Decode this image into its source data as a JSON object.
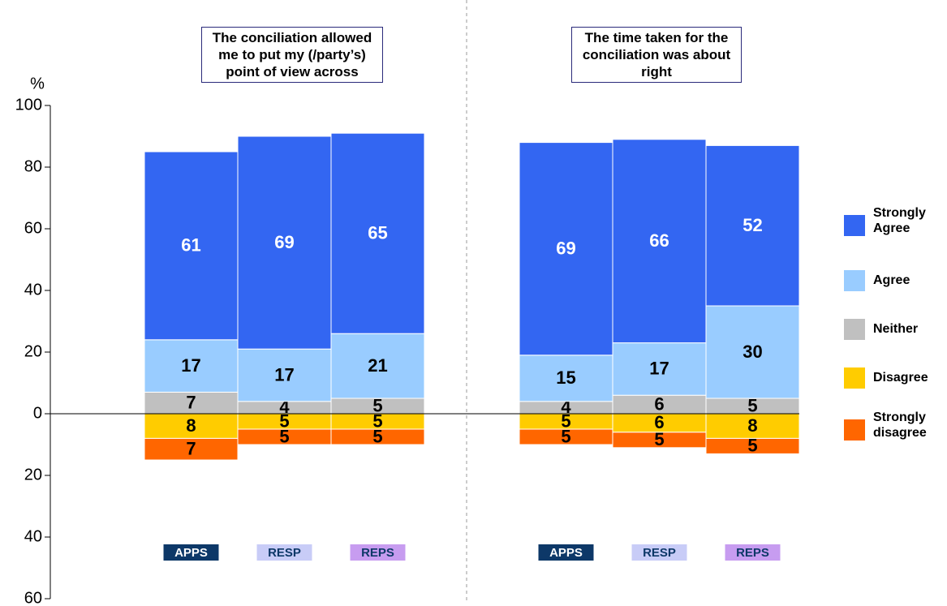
{
  "chart_data": {
    "type": "diverging-stacked-bar",
    "ylabel": "%",
    "ylim": [
      -60,
      100
    ],
    "yticks": [
      100,
      80,
      60,
      40,
      20,
      0,
      {
        "value": -20,
        "label": "20"
      },
      {
        "value": -40,
        "label": "40"
      },
      {
        "value": -60,
        "label": "60"
      }
    ],
    "groups": [
      {
        "title": "The conciliation allowed me to put my (/party’s) point of view across",
        "categories": [
          "APPS",
          "RESP",
          "REPS"
        ]
      },
      {
        "title": "The time taken for the conciliation was about right",
        "categories": [
          "APPS",
          "RESP",
          "REPS"
        ]
      }
    ],
    "category_colors": [
      {
        "fill": "#0d3868",
        "text": "#ffffff"
      },
      {
        "fill": "#c8ccf7",
        "text": "#0d3868"
      },
      {
        "fill": "#c79cf0",
        "text": "#0d3868"
      }
    ],
    "series": [
      {
        "name": "Strongly Agree",
        "color": "#3366f2",
        "label_color": "#ffffff",
        "values": [
          61,
          69,
          65,
          69,
          66,
          52
        ]
      },
      {
        "name": "Agree",
        "color": "#99ccff",
        "label_color": "#000000",
        "values": [
          17,
          17,
          21,
          15,
          17,
          30
        ]
      },
      {
        "name": "Neither",
        "color": "#c0c0c0",
        "label_color": "#000000",
        "values": [
          7,
          4,
          5,
          4,
          6,
          5
        ]
      },
      {
        "name": "Disagree",
        "color": "#ffcc00",
        "label_color": "#000000",
        "values": [
          -8,
          -5,
          -5,
          -5,
          -6,
          -8
        ],
        "value_labels": [
          "8",
          "5",
          "5",
          "5",
          "6",
          "8"
        ]
      },
      {
        "name": "Strongly disagree",
        "color": "#ff6600",
        "label_color": "#000000",
        "values": [
          -7,
          -5,
          -5,
          -5,
          -5,
          -5
        ],
        "value_labels": [
          "7",
          "5",
          "5",
          "5",
          "5",
          "5"
        ]
      }
    ]
  }
}
